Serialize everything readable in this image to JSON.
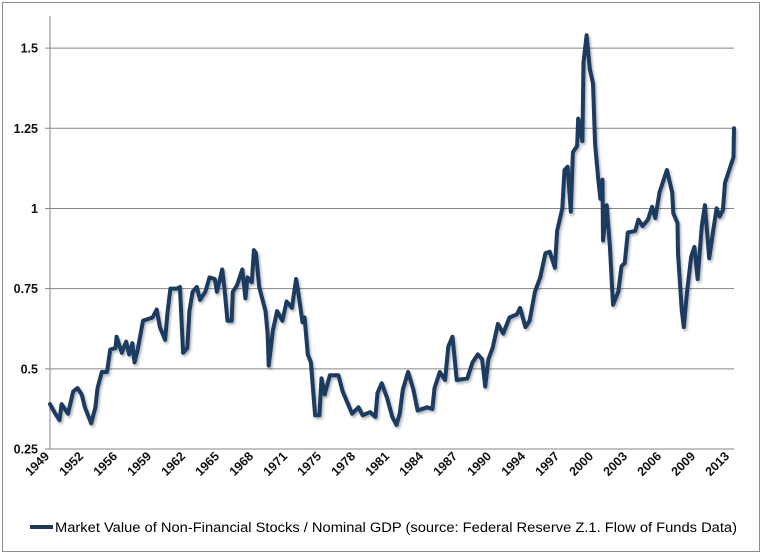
{
  "chart_data": {
    "type": "line",
    "title": "",
    "xlabel": "",
    "ylabel": "",
    "xlim": [
      1949,
      2013.75
    ],
    "ylim": [
      0.25,
      1.6
    ],
    "yticks": [
      "0.25",
      "0.5",
      "0.75",
      "1",
      "1.25",
      "1.5"
    ],
    "ytick_values": [
      0.25,
      0.5,
      0.75,
      1,
      1.25,
      1.5
    ],
    "xtick_labels": [
      "1949",
      "1952",
      "1956",
      "1959",
      "1962",
      "1965",
      "1968",
      "1971",
      "1975",
      "1978",
      "1981",
      "1984",
      "1987",
      "1990",
      "1994",
      "1997",
      "2000",
      "2003",
      "2006",
      "2009",
      "2013"
    ],
    "grid": "horizontal",
    "legend_placement": "bottom",
    "line_color": "#1f3a60",
    "series": [
      {
        "name": "Market Value of Non-Financial Stocks / Nominal GDP (source: Federal Reserve Z.1. Flow of Funds Data)",
        "points": [
          [
            1949.0,
            0.39
          ],
          [
            1949.5,
            0.36
          ],
          [
            1949.9,
            0.34
          ],
          [
            1950.1,
            0.39
          ],
          [
            1950.7,
            0.36
          ],
          [
            1951.2,
            0.43
          ],
          [
            1951.6,
            0.44
          ],
          [
            1952.0,
            0.42
          ],
          [
            1952.3,
            0.38
          ],
          [
            1952.9,
            0.33
          ],
          [
            1953.3,
            0.38
          ],
          [
            1953.5,
            0.44
          ],
          [
            1953.9,
            0.49
          ],
          [
            1954.4,
            0.49
          ],
          [
            1954.7,
            0.56
          ],
          [
            1955.2,
            0.565
          ],
          [
            1955.3,
            0.6
          ],
          [
            1955.8,
            0.55
          ],
          [
            1956.2,
            0.585
          ],
          [
            1956.5,
            0.545
          ],
          [
            1956.8,
            0.58
          ],
          [
            1957.0,
            0.52
          ],
          [
            1957.3,
            0.56
          ],
          [
            1957.8,
            0.65
          ],
          [
            1958.7,
            0.66
          ],
          [
            1959.1,
            0.685
          ],
          [
            1959.4,
            0.63
          ],
          [
            1959.9,
            0.59
          ],
          [
            1960.1,
            0.67
          ],
          [
            1960.4,
            0.75
          ],
          [
            1961.0,
            0.75
          ],
          [
            1961.3,
            0.755
          ],
          [
            1961.6,
            0.55
          ],
          [
            1962.0,
            0.565
          ],
          [
            1962.2,
            0.68
          ],
          [
            1962.5,
            0.74
          ],
          [
            1962.9,
            0.755
          ],
          [
            1963.2,
            0.715
          ],
          [
            1963.7,
            0.74
          ],
          [
            1964.1,
            0.785
          ],
          [
            1964.6,
            0.78
          ],
          [
            1964.8,
            0.74
          ],
          [
            1965.3,
            0.81
          ],
          [
            1965.5,
            0.755
          ],
          [
            1965.8,
            0.65
          ],
          [
            1966.2,
            0.65
          ],
          [
            1966.3,
            0.74
          ],
          [
            1966.7,
            0.76
          ],
          [
            1967.2,
            0.81
          ],
          [
            1967.5,
            0.72
          ],
          [
            1967.7,
            0.785
          ],
          [
            1968.1,
            0.77
          ],
          [
            1968.3,
            0.87
          ],
          [
            1968.5,
            0.86
          ],
          [
            1968.8,
            0.755
          ],
          [
            1969.4,
            0.68
          ],
          [
            1969.6,
            0.61
          ],
          [
            1969.7,
            0.51
          ],
          [
            1970.1,
            0.62
          ],
          [
            1970.5,
            0.68
          ],
          [
            1971.0,
            0.65
          ],
          [
            1971.4,
            0.71
          ],
          [
            1971.9,
            0.69
          ],
          [
            1972.3,
            0.78
          ],
          [
            1972.5,
            0.74
          ],
          [
            1972.9,
            0.645
          ],
          [
            1973.1,
            0.66
          ],
          [
            1973.4,
            0.545
          ],
          [
            1973.7,
            0.52
          ],
          [
            1974.1,
            0.355
          ],
          [
            1974.5,
            0.355
          ],
          [
            1974.7,
            0.47
          ],
          [
            1975.0,
            0.42
          ],
          [
            1975.5,
            0.48
          ],
          [
            1976.3,
            0.48
          ],
          [
            1976.7,
            0.43
          ],
          [
            1977.6,
            0.36
          ],
          [
            1978.2,
            0.38
          ],
          [
            1978.6,
            0.355
          ],
          [
            1979.3,
            0.365
          ],
          [
            1979.8,
            0.35
          ],
          [
            1980.0,
            0.425
          ],
          [
            1980.4,
            0.455
          ],
          [
            1980.9,
            0.41
          ],
          [
            1981.4,
            0.35
          ],
          [
            1981.8,
            0.325
          ],
          [
            1982.1,
            0.36
          ],
          [
            1982.4,
            0.435
          ],
          [
            1982.9,
            0.49
          ],
          [
            1983.4,
            0.435
          ],
          [
            1983.8,
            0.37
          ],
          [
            1984.7,
            0.38
          ],
          [
            1985.2,
            0.375
          ],
          [
            1985.4,
            0.44
          ],
          [
            1985.9,
            0.49
          ],
          [
            1986.4,
            0.465
          ],
          [
            1986.7,
            0.57
          ],
          [
            1987.1,
            0.6
          ],
          [
            1987.5,
            0.465
          ],
          [
            1988.5,
            0.47
          ],
          [
            1989.0,
            0.52
          ],
          [
            1989.5,
            0.545
          ],
          [
            1989.9,
            0.53
          ],
          [
            1990.2,
            0.445
          ],
          [
            1990.5,
            0.53
          ],
          [
            1990.9,
            0.565
          ],
          [
            1991.4,
            0.64
          ],
          [
            1991.9,
            0.61
          ],
          [
            1992.5,
            0.66
          ],
          [
            1993.2,
            0.67
          ],
          [
            1993.5,
            0.69
          ],
          [
            1994.0,
            0.63
          ],
          [
            1994.4,
            0.65
          ],
          [
            1994.9,
            0.74
          ],
          [
            1995.4,
            0.785
          ],
          [
            1995.9,
            0.86
          ],
          [
            1996.3,
            0.865
          ],
          [
            1996.8,
            0.815
          ],
          [
            1997.0,
            0.93
          ],
          [
            1997.5,
            1.0
          ],
          [
            1997.7,
            1.12
          ],
          [
            1998.0,
            1.13
          ],
          [
            1998.3,
            0.99
          ],
          [
            1998.5,
            1.175
          ],
          [
            1998.9,
            1.195
          ],
          [
            1999.0,
            1.28
          ],
          [
            1999.4,
            1.21
          ],
          [
            1999.5,
            1.455
          ],
          [
            1999.8,
            1.54
          ],
          [
            2000.1,
            1.435
          ],
          [
            2000.4,
            1.39
          ],
          [
            2000.6,
            1.2
          ],
          [
            2000.9,
            1.09
          ],
          [
            2001.1,
            1.03
          ],
          [
            2001.3,
            1.09
          ],
          [
            2001.35,
            0.9
          ],
          [
            2001.7,
            1.01
          ],
          [
            2002.0,
            0.88
          ],
          [
            2002.3,
            0.7
          ],
          [
            2002.8,
            0.74
          ],
          [
            2003.1,
            0.82
          ],
          [
            2003.4,
            0.83
          ],
          [
            2003.7,
            0.925
          ],
          [
            2004.4,
            0.93
          ],
          [
            2004.7,
            0.965
          ],
          [
            2005.1,
            0.945
          ],
          [
            2005.6,
            0.965
          ],
          [
            2006.0,
            1.005
          ],
          [
            2006.3,
            0.97
          ],
          [
            2006.7,
            1.05
          ],
          [
            2007.4,
            1.12
          ],
          [
            2007.9,
            1.05
          ],
          [
            2008.0,
            0.985
          ],
          [
            2008.4,
            0.955
          ],
          [
            2008.45,
            0.86
          ],
          [
            2008.8,
            0.685
          ],
          [
            2009.0,
            0.63
          ],
          [
            2009.3,
            0.74
          ],
          [
            2009.7,
            0.85
          ],
          [
            2010.0,
            0.88
          ],
          [
            2010.3,
            0.78
          ],
          [
            2010.7,
            0.945
          ],
          [
            2011.0,
            1.01
          ],
          [
            2011.4,
            0.845
          ],
          [
            2011.8,
            0.935
          ],
          [
            2012.1,
            1.0
          ],
          [
            2012.4,
            0.975
          ],
          [
            2012.7,
            0.995
          ],
          [
            2012.9,
            1.08
          ],
          [
            2013.4,
            1.13
          ],
          [
            2013.7,
            1.16
          ],
          [
            2013.75,
            1.25
          ]
        ]
      }
    ]
  }
}
